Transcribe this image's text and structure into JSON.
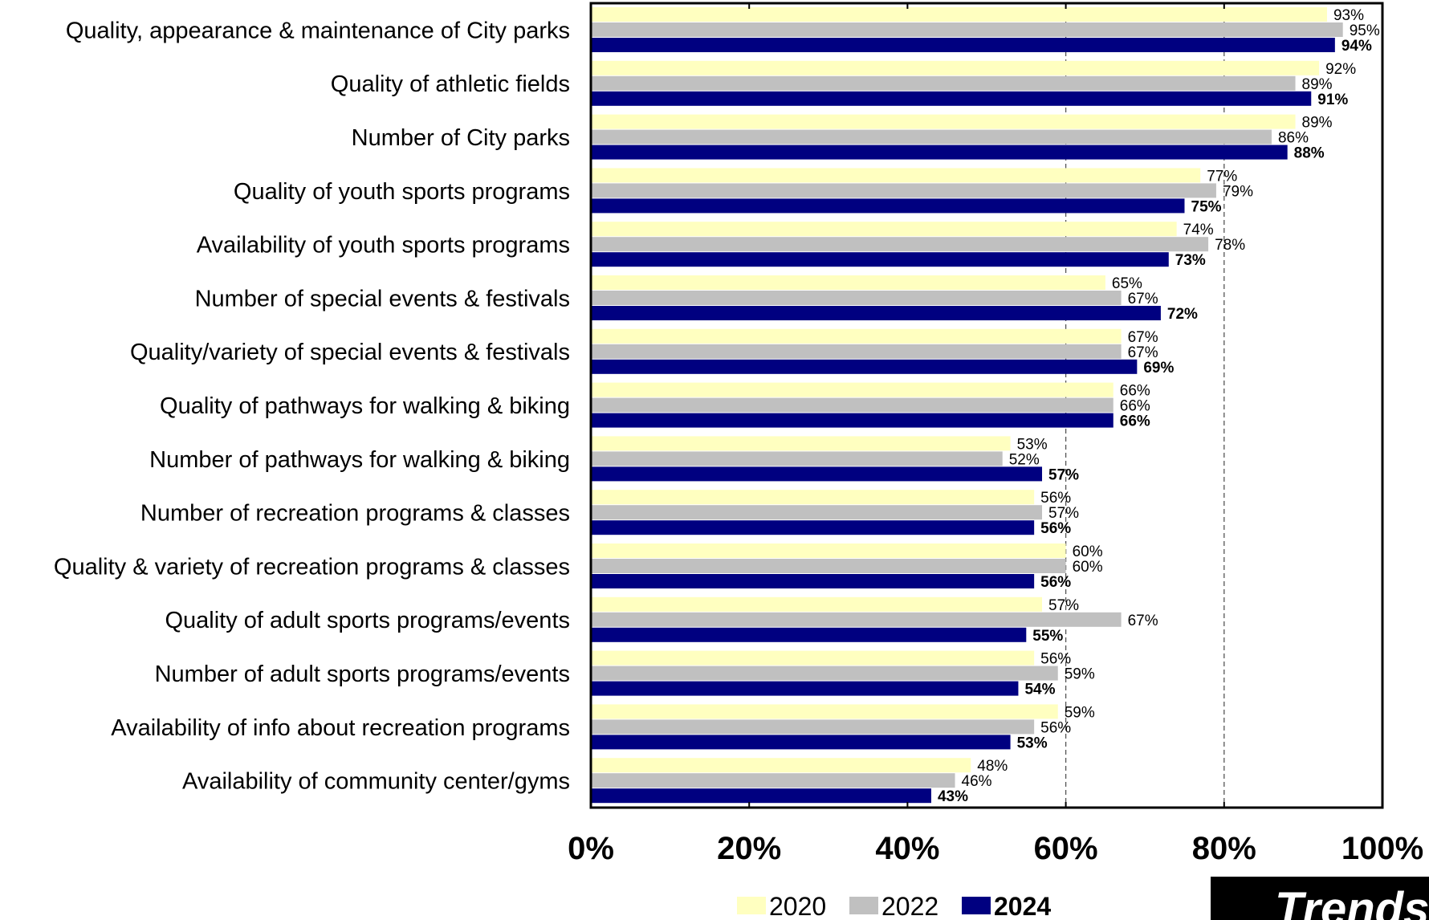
{
  "chart_data": {
    "type": "bar",
    "orientation": "horizontal",
    "categories": [
      "Quality, appearance & maintenance of City parks",
      "Quality of athletic fields",
      "Number of City parks",
      "Quality of youth sports programs",
      "Availability of youth sports programs",
      "Number of special events & festivals",
      "Quality/variety of special events & festivals",
      "Quality of pathways for walking & biking",
      "Number of pathways for walking & biking",
      "Number of recreation programs & classes",
      "Quality & variety of recreation programs & classes",
      "Quality of adult sports programs/events",
      "Number of adult sports programs/events",
      "Availability of info about recreation programs",
      "Availability of community center/gyms"
    ],
    "series": [
      {
        "name": "2020",
        "color": "#FFFFC0",
        "bold": false,
        "values": [
          93,
          92,
          89,
          77,
          74,
          65,
          67,
          66,
          53,
          56,
          60,
          57,
          56,
          59,
          48
        ]
      },
      {
        "name": "2022",
        "color": "#C0C0C0",
        "bold": false,
        "values": [
          95,
          89,
          86,
          79,
          78,
          67,
          67,
          66,
          52,
          57,
          60,
          67,
          59,
          56,
          46
        ]
      },
      {
        "name": "2024",
        "color": "#000080",
        "bold": true,
        "values": [
          94,
          91,
          88,
          75,
          73,
          72,
          69,
          66,
          57,
          56,
          56,
          55,
          54,
          53,
          43
        ]
      }
    ],
    "value_suffix": "%",
    "xlim": [
      0,
      100
    ],
    "xticks": [
      "0%",
      "20%",
      "40%",
      "60%",
      "80%",
      "100%"
    ],
    "reference_lines": [
      60,
      80
    ],
    "legend_position": "bottom",
    "grid": false
  },
  "banner": {
    "text": "Trends",
    "color": "#000000"
  }
}
